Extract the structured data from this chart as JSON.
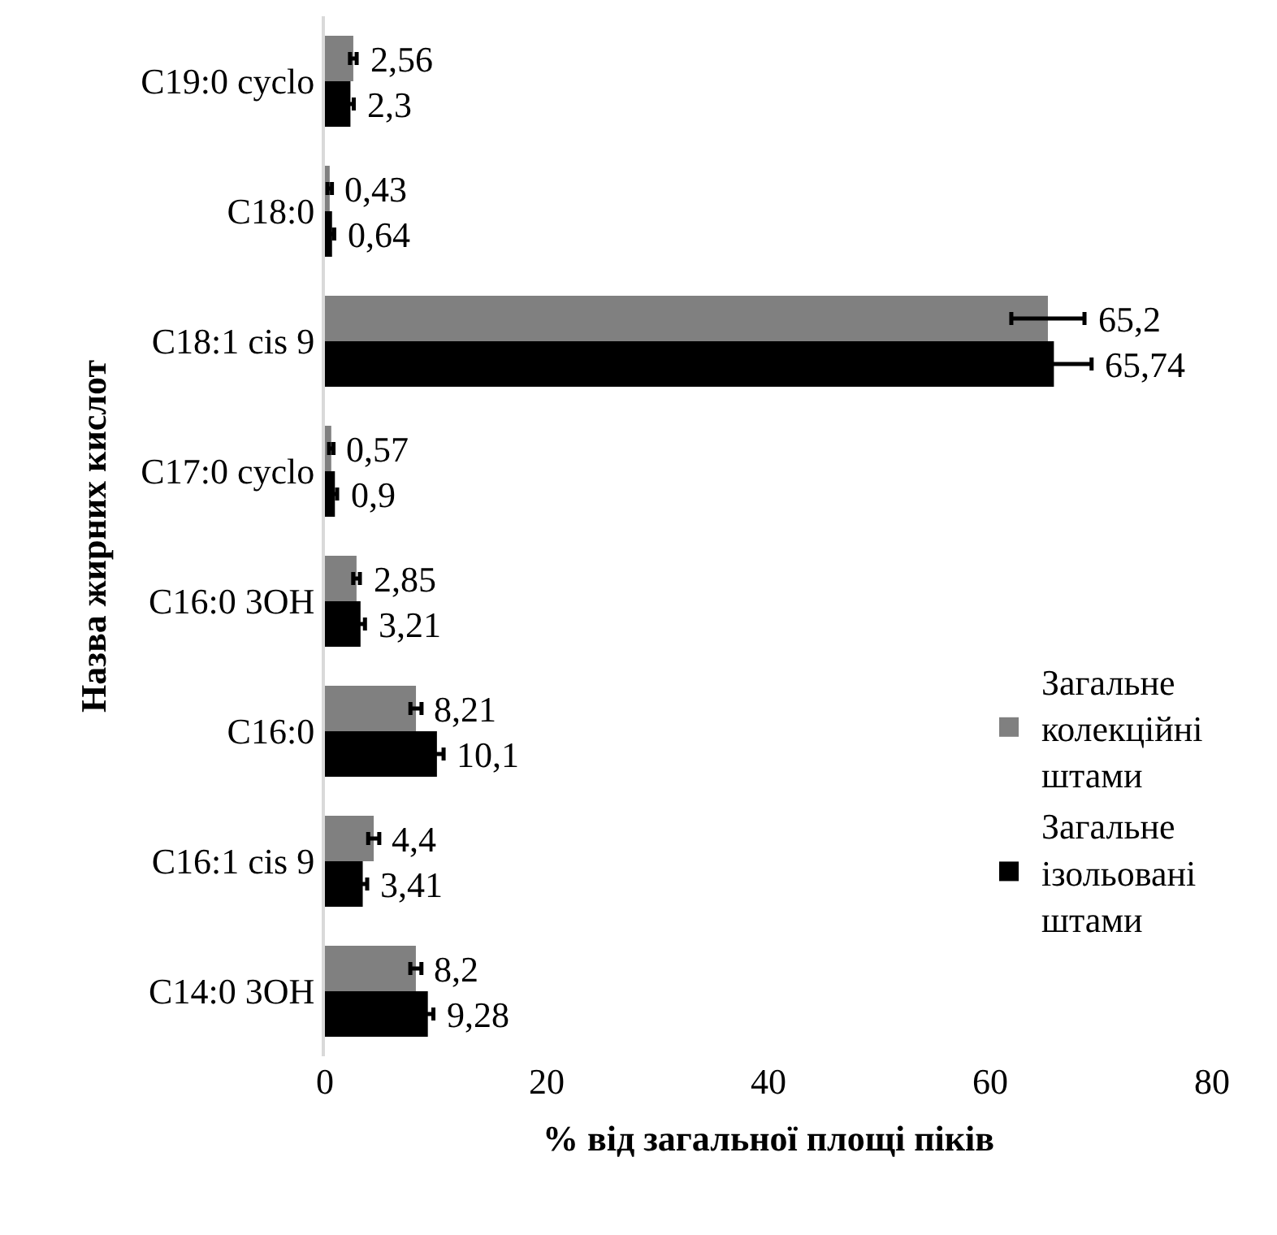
{
  "chart_data": {
    "type": "bar",
    "orientation": "horizontal",
    "xlabel": "% від загальної площі піків",
    "ylabel": "Назва жирних кислот",
    "categories": [
      "C19:0 cyclo",
      "C18:0",
      "C18:1 cis 9",
      "C17:0 cyclo",
      "C16:0 3OH",
      "C16:0",
      "C16:1 cis 9",
      "C14:0 3OH"
    ],
    "series": [
      {
        "name": "Загальне колекційні штами",
        "color": "#808080",
        "values": [
          2.56,
          0.43,
          65.2,
          0.57,
          2.85,
          8.21,
          4.4,
          8.2
        ],
        "errors": [
          0.3,
          0.2,
          3.3,
          0.2,
          0.3,
          0.5,
          0.5,
          0.5
        ],
        "value_labels": [
          "2,56",
          "0,43",
          "65,2",
          "0,57",
          "2,85",
          "8,21",
          "4,4",
          "8,2"
        ]
      },
      {
        "name": "Загальне ізольовані штами",
        "color": "#000000",
        "values": [
          2.3,
          0.64,
          65.74,
          0.9,
          3.21,
          10.1,
          3.41,
          9.28
        ],
        "errors": [
          0.3,
          0.2,
          3.4,
          0.2,
          0.4,
          0.6,
          0.4,
          0.5
        ],
        "value_labels": [
          "2,3",
          "0,64",
          "65,74",
          "0,9",
          "3,21",
          "10,1",
          "3,41",
          "9,28"
        ]
      }
    ],
    "xlim": [
      0,
      80
    ],
    "xticks": [
      0,
      20,
      40,
      60,
      80
    ],
    "legend": "right"
  }
}
